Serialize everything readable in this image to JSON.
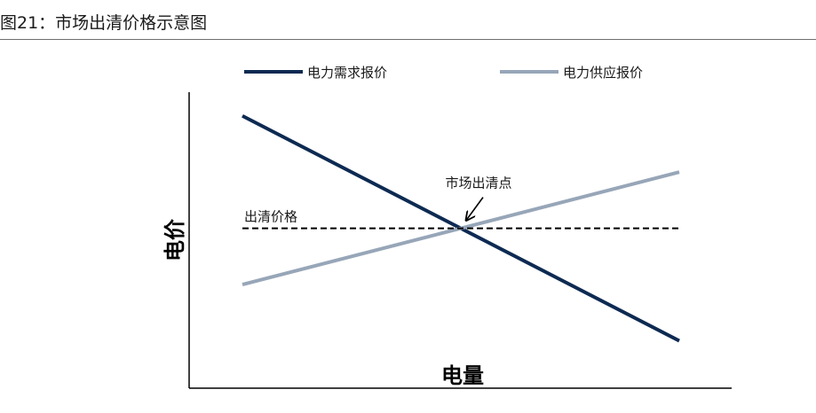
{
  "figure": {
    "title": "图21：市场出清价格示意图"
  },
  "chart_data": {
    "type": "line",
    "xlabel": "电量",
    "ylabel": "电价",
    "xlim": [
      0,
      100
    ],
    "ylim": [
      0,
      100
    ],
    "grid": false,
    "legend": "top",
    "series": [
      {
        "name": "电力需求报价",
        "color": "#0d2a52",
        "x": [
          0,
          100
        ],
        "y": [
          92,
          16
        ]
      },
      {
        "name": "电力供应报价",
        "color": "#97a6b8",
        "x": [
          0,
          100
        ],
        "y": [
          35,
          73
        ]
      }
    ],
    "reference_line": {
      "label": "出清价格",
      "y": 54,
      "x": [
        0,
        100
      ],
      "style": "dashed",
      "color": "#000000"
    },
    "annotation": {
      "label": "市场出清点",
      "x": 50,
      "y": 54
    }
  }
}
